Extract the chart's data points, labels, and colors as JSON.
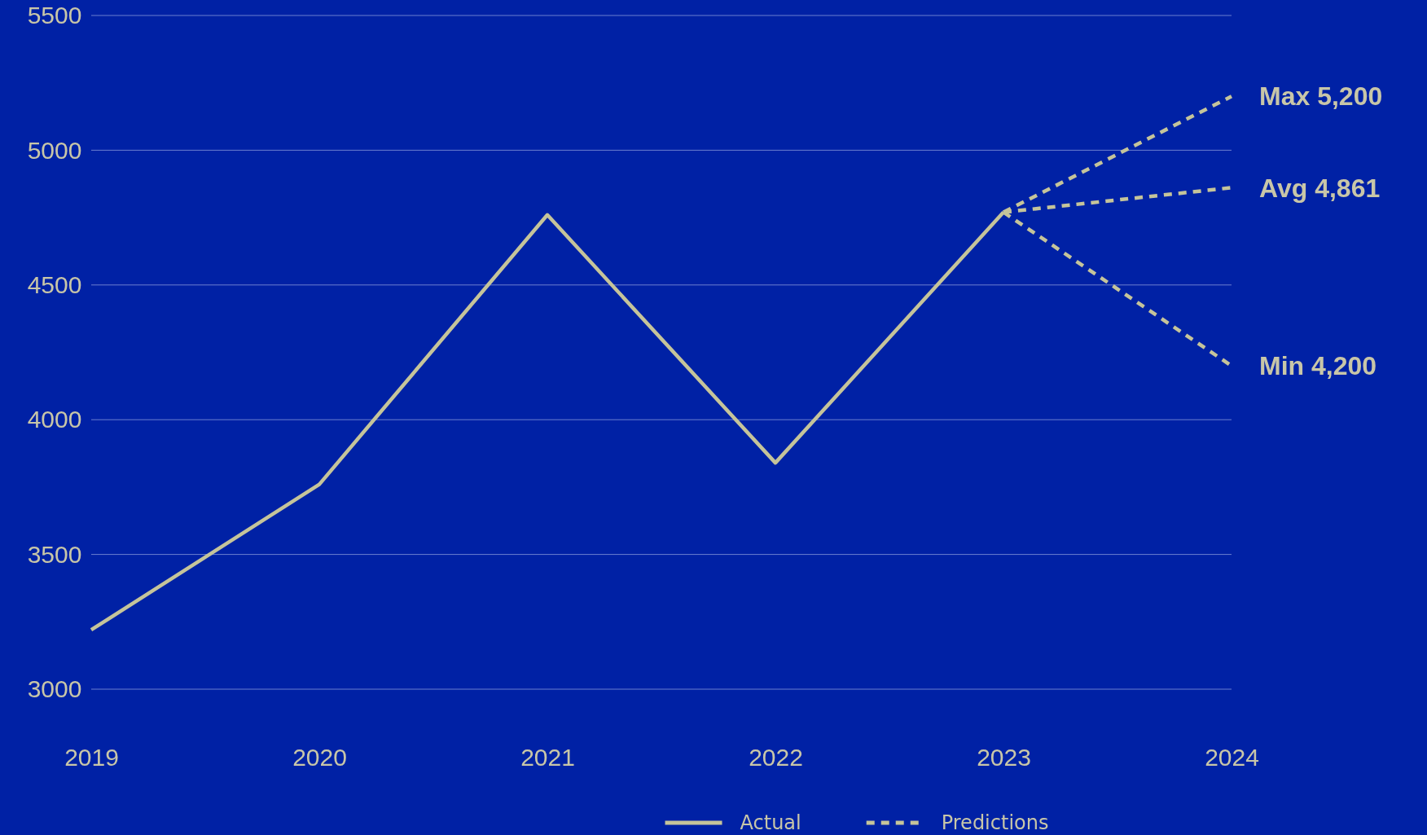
{
  "chart_data": {
    "type": "line",
    "categories": [
      "2019",
      "2020",
      "2021",
      "2022",
      "2023",
      "2024"
    ],
    "series": [
      {
        "name": "Actual",
        "color": "#c5c49a",
        "line_style": "solid",
        "values": [
          3220,
          3760,
          4760,
          3840,
          4770,
          null
        ]
      },
      {
        "name": "Predictions",
        "color": "#c5c49a",
        "line_style": "dashed",
        "values": [
          null,
          null,
          null,
          null,
          4770,
          5200
        ],
        "value_labels": [
          null,
          null,
          null,
          null,
          null,
          "Max 5,200"
        ]
      },
      {
        "color": "#c5c49a",
        "line_style": "dashed",
        "values": [
          null,
          null,
          null,
          null,
          4770,
          4861
        ],
        "value_labels": [
          null,
          null,
          null,
          null,
          null,
          "Avg 4,861"
        ]
      },
      {
        "color": "#c5c49a",
        "line_style": "dashed",
        "values": [
          null,
          null,
          null,
          null,
          4770,
          4200
        ],
        "value_labels": [
          null,
          null,
          null,
          null,
          null,
          "Min 4,200"
        ]
      }
    ],
    "ylim": [
      3000,
      5500
    ],
    "yticks": [
      3000,
      3500,
      4000,
      4500,
      5000,
      5500
    ],
    "grid": "y",
    "legend": "bottom",
    "marker": "none"
  }
}
